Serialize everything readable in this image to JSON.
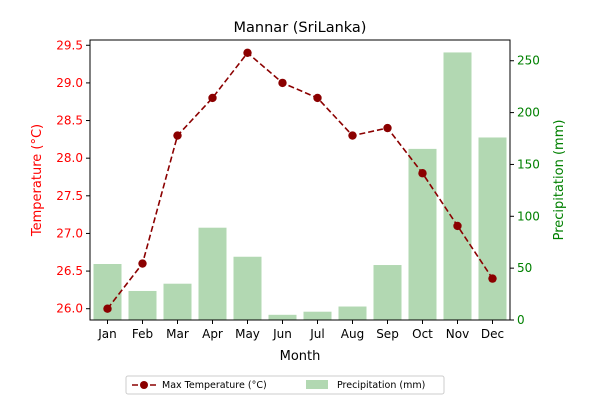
{
  "chart_data": {
    "type": "bar+line",
    "title": "Mannar (SriLanka)",
    "xlabel": "Month",
    "ylabel_left": "Temperature (°C)",
    "ylabel_right": "Precipitation (mm)",
    "categories": [
      "Jan",
      "Feb",
      "Mar",
      "Apr",
      "May",
      "Jun",
      "Jul",
      "Aug",
      "Sep",
      "Oct",
      "Nov",
      "Dec"
    ],
    "series": [
      {
        "name": "Max Temperature (°C)",
        "type": "line",
        "axis": "left",
        "values": [
          26.0,
          26.6,
          28.3,
          28.8,
          29.4,
          29.0,
          28.8,
          28.3,
          28.4,
          27.8,
          27.1,
          26.4
        ]
      },
      {
        "name": "Precipitation (mm)",
        "type": "bar",
        "axis": "right",
        "values": [
          54,
          28,
          35,
          89,
          61,
          5,
          8,
          13,
          53,
          165,
          258,
          176
        ]
      }
    ],
    "ylim_left": [
      25.85,
      29.57
    ],
    "ylim_right": [
      0,
      270
    ],
    "yticks_left": [
      "26.0",
      "26.5",
      "27.0",
      "27.5",
      "28.0",
      "28.5",
      "29.0",
      "29.5"
    ],
    "yticks_right": [
      "0",
      "50",
      "100",
      "150",
      "200",
      "250"
    ],
    "grid": false,
    "legend_placement": "bottom-center",
    "colors": {
      "line": "#8b0000",
      "bar": "#b2d8b2",
      "left_axis": "#ff0000",
      "right_axis": "#008000"
    }
  }
}
